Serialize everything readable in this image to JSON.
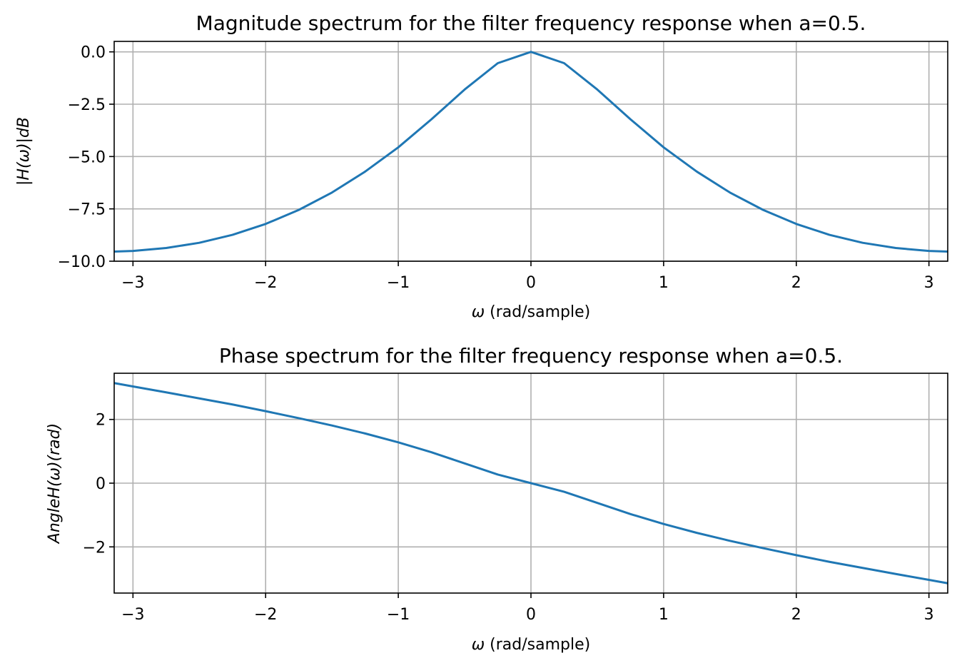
{
  "chart_data": [
    {
      "type": "line",
      "title": "Magnitude spectrum for the filter frequency response when a=0.5.",
      "xlabel": "ω (rad/sample)",
      "ylabel": "|H(ω)|dB",
      "xlim": [
        -3.14159,
        3.14159
      ],
      "ylim": [
        -10.0,
        0.5
      ],
      "xticks": [
        -3,
        -2,
        -1,
        0,
        1,
        2,
        3
      ],
      "xtick_labels": [
        "−3",
        "−2",
        "−1",
        "0",
        "1",
        "2",
        "3"
      ],
      "yticks": [
        0.0,
        -2.5,
        -5.0,
        -7.5,
        -10.0
      ],
      "ytick_labels": [
        "0.0",
        "−2.5",
        "−5.0",
        "−7.5",
        "−10.0"
      ],
      "grid": true,
      "series": [
        {
          "name": "magnitude",
          "color": "#1f77b4",
          "x": [
            -3.14159,
            -3.0,
            -2.75,
            -2.5,
            -2.25,
            -2.0,
            -1.75,
            -1.5,
            -1.25,
            -1.0,
            -0.75,
            -0.5,
            -0.25,
            0.0,
            0.25,
            0.5,
            0.75,
            1.0,
            1.25,
            1.5,
            1.75,
            2.0,
            2.25,
            2.5,
            2.75,
            3.0,
            3.14159
          ],
          "y": [
            -9.54,
            -9.51,
            -9.37,
            -9.12,
            -8.74,
            -8.22,
            -7.55,
            -6.72,
            -5.72,
            -4.56,
            -3.22,
            -1.8,
            -0.54,
            0.0,
            -0.54,
            -1.8,
            -3.22,
            -4.56,
            -5.72,
            -6.72,
            -7.55,
            -8.22,
            -8.74,
            -9.12,
            -9.37,
            -9.51,
            -9.54
          ]
        }
      ]
    },
    {
      "type": "line",
      "title": "Phase spectrum for the filter frequency response when a=0.5.",
      "xlabel": "ω (rad/sample)",
      "ylabel": "AngleH(ω)(rad)",
      "xlim": [
        -3.14159,
        3.14159
      ],
      "ylim": [
        -3.45,
        3.45
      ],
      "xticks": [
        -3,
        -2,
        -1,
        0,
        1,
        2,
        3
      ],
      "xtick_labels": [
        "−3",
        "−2",
        "−1",
        "0",
        "1",
        "2",
        "3"
      ],
      "yticks": [
        2,
        0,
        -2
      ],
      "ytick_labels": [
        "2",
        "0",
        "−2"
      ],
      "grid": true,
      "series": [
        {
          "name": "phase",
          "color": "#1f77b4",
          "x": [
            -3.14159,
            -3.0,
            -2.75,
            -2.5,
            -2.25,
            -2.0,
            -1.75,
            -1.5,
            -1.25,
            -1.0,
            -0.75,
            -0.5,
            -0.25,
            0.0,
            0.25,
            0.5,
            0.75,
            1.0,
            1.25,
            1.5,
            1.75,
            2.0,
            2.25,
            2.5,
            2.75,
            3.0,
            3.14159
          ],
          "y": [
            3.142,
            3.036,
            2.85,
            2.66,
            2.47,
            2.26,
            2.04,
            1.81,
            1.56,
            1.28,
            0.97,
            0.62,
            0.27,
            0.0,
            -0.27,
            -0.62,
            -0.97,
            -1.28,
            -1.56,
            -1.81,
            -2.04,
            -2.26,
            -2.47,
            -2.66,
            -2.85,
            -3.036,
            -3.142
          ]
        }
      ]
    }
  ]
}
